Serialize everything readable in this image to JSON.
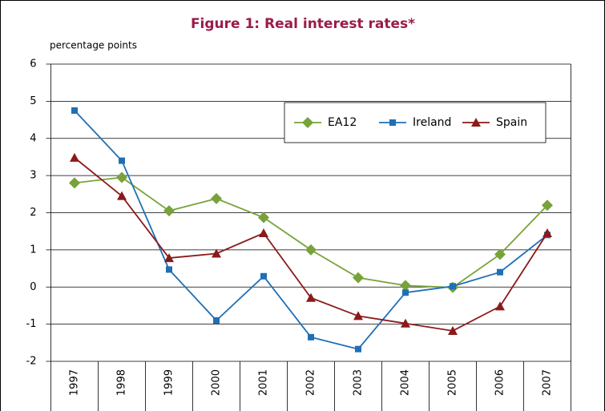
{
  "chart_data": {
    "type": "line",
    "title": "Figure 1: Real interest rates*",
    "y_label": "percentage points",
    "categories": [
      "1997",
      "1998",
      "1999",
      "2000",
      "2001",
      "2002",
      "2003",
      "2004",
      "2005",
      "2006",
      "2007"
    ],
    "series": [
      {
        "name": "EA12",
        "color": "#77a33a",
        "marker": "diamond",
        "values": [
          2.8,
          2.95,
          2.05,
          2.38,
          1.87,
          1.0,
          0.25,
          0.04,
          -0.01,
          0.88,
          2.2
        ]
      },
      {
        "name": "Ireland",
        "color": "#1f6fb5",
        "marker": "square",
        "values": [
          4.75,
          3.4,
          0.47,
          -0.9,
          0.29,
          -1.35,
          -1.67,
          -0.15,
          0.02,
          0.4,
          1.4
        ]
      },
      {
        "name": "Spain",
        "color": "#8b1a1a",
        "marker": "triangle",
        "values": [
          3.48,
          2.45,
          0.78,
          0.9,
          1.45,
          -0.29,
          -0.78,
          -0.98,
          -1.18,
          -0.52,
          1.45
        ]
      }
    ],
    "ylim": [
      -2,
      6
    ],
    "yticks": [
      -2,
      -1,
      0,
      1,
      2,
      3,
      4,
      5,
      6
    ],
    "grid": true,
    "legend": "upper right"
  }
}
